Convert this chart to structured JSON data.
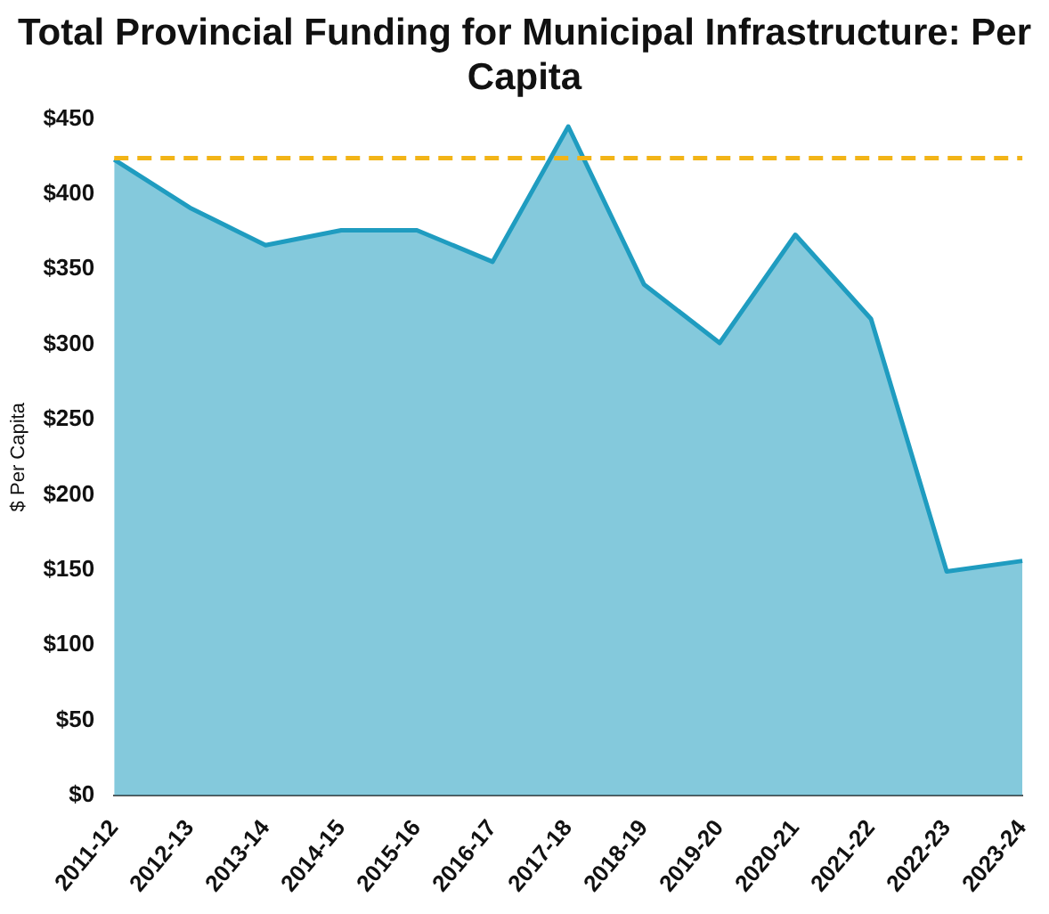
{
  "chart_data": {
    "type": "area",
    "title": "Total Provincial Funding for Municipal Infrastructure: Per Capita",
    "ylabel": "$ Per Capita",
    "categories": [
      "2011-12",
      "2012-13",
      "2013-14",
      "2014-15",
      "2015-16",
      "2016-17",
      "2017-18",
      "2018-19",
      "2019-20",
      "2020-21",
      "2021-22",
      "2022-23",
      "2023-24"
    ],
    "series": [
      {
        "color": "#1f9cc0",
        "values": [
          423,
          391,
          366,
          376,
          376,
          355,
          445,
          340,
          301,
          373,
          317,
          149,
          156
        ]
      }
    ],
    "ylim": [
      0,
      450
    ],
    "yticks": [
      {
        "value": 0,
        "label": "$0"
      },
      {
        "value": 50,
        "label": "$50"
      },
      {
        "value": 100,
        "label": "$100"
      },
      {
        "value": 150,
        "label": "$150"
      },
      {
        "value": 200,
        "label": "$200"
      },
      {
        "value": 250,
        "label": "$250"
      },
      {
        "value": 300,
        "label": "$300"
      },
      {
        "value": 350,
        "label": "$350"
      },
      {
        "value": 400,
        "label": "$400"
      },
      {
        "value": 450,
        "label": "$450"
      }
    ],
    "ref_lines": [
      {
        "axis": "y",
        "value": 424,
        "color": "#f2b417",
        "line_style": "dashed"
      }
    ],
    "grid": false,
    "legend": false
  }
}
